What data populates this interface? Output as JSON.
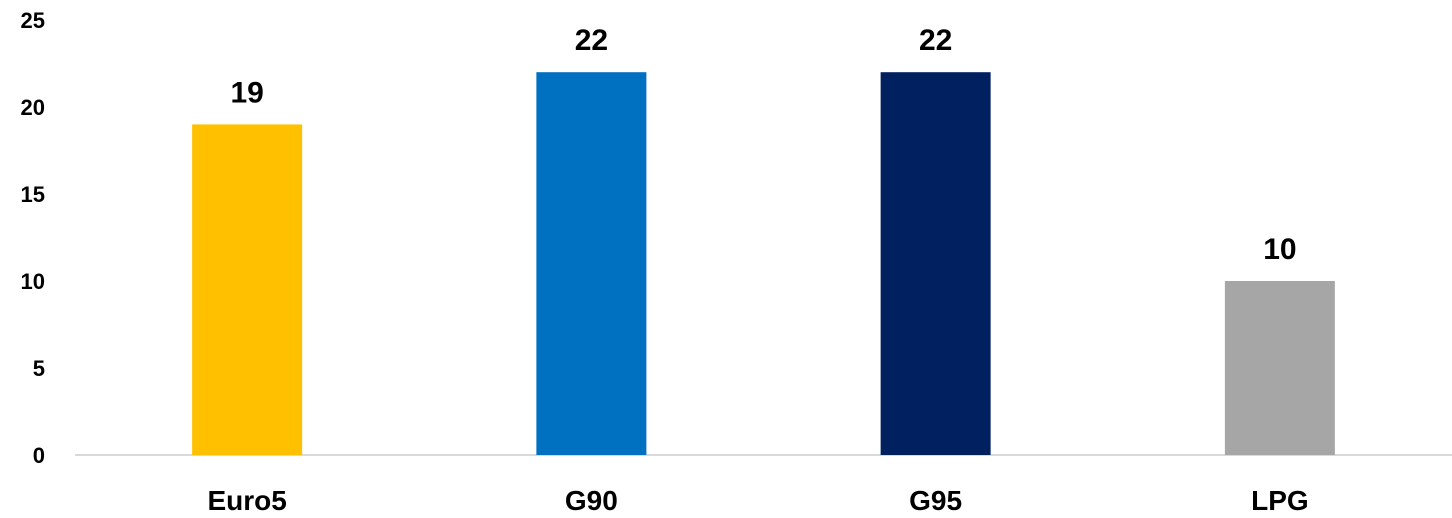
{
  "chart_data": {
    "type": "bar",
    "categories": [
      "Euro5",
      "G90",
      "G95",
      "LPG"
    ],
    "values": [
      19,
      22,
      22,
      10
    ],
    "bar_colors": [
      "#FFC000",
      "#0070C0",
      "#002060",
      "#A6A6A6"
    ],
    "ylim": [
      0,
      25
    ],
    "yticks": [
      0,
      5,
      10,
      15,
      20,
      25
    ],
    "grid": false,
    "data_labels": true
  }
}
